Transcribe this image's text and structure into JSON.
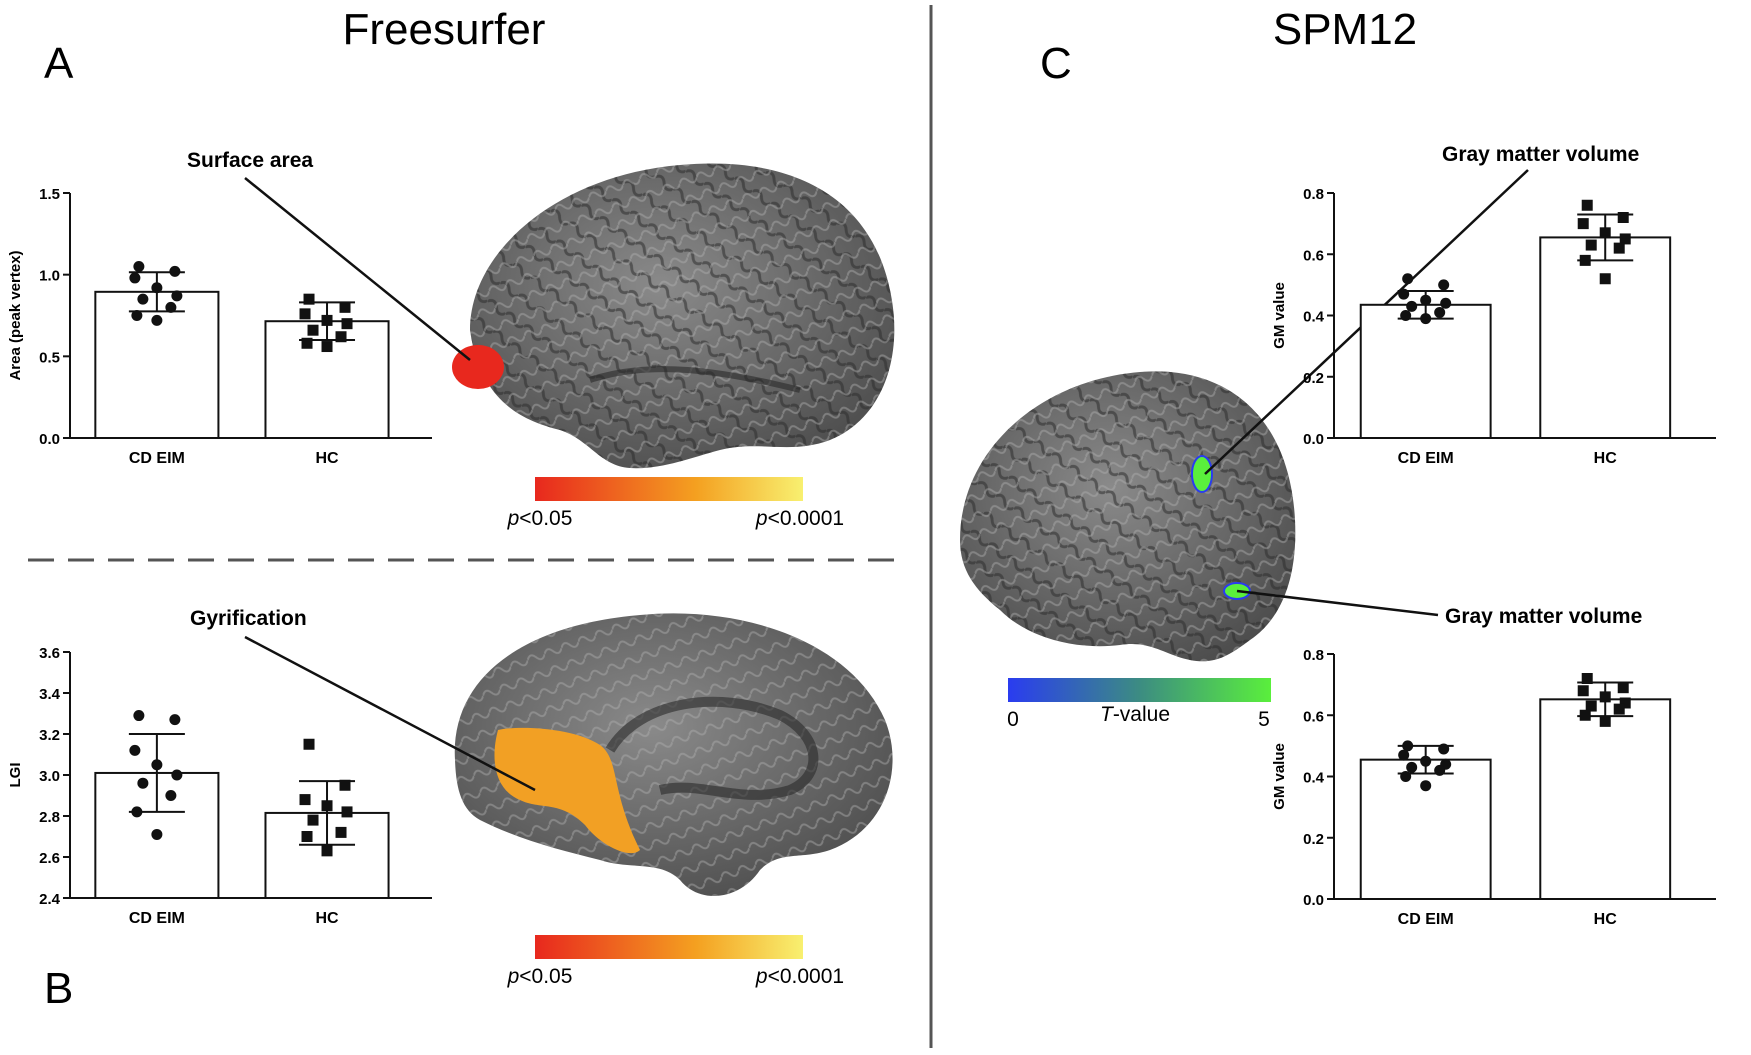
{
  "headings": {
    "left": "Freesurfer",
    "right": "SPM12"
  },
  "panel_letters": {
    "a": "A",
    "b": "B",
    "c": "C"
  },
  "annotations": {
    "surface_area": "Surface area",
    "gyrification": "Gyrification",
    "gm_volume_top": "Gray matter volume",
    "gm_volume_bottom": "Gray matter volume"
  },
  "colorbars": {
    "freesurfer_top": {
      "low": "p<0.05",
      "high": "p<0.0001",
      "colors": [
        "#e8281e",
        "#f4a020",
        "#f8f070"
      ]
    },
    "freesurfer_bottom": {
      "low": "p<0.05",
      "high": "p<0.0001",
      "colors": [
        "#e8281e",
        "#f4a020",
        "#f8f070"
      ]
    },
    "spm": {
      "low": "0",
      "mid": "T-value",
      "high": "5",
      "colors": [
        "#2a3cf0",
        "#3c8c82",
        "#5aef3c"
      ]
    }
  },
  "colors": {
    "brain_dark": "#3a3a3a",
    "brain_light": "#8c8c8c",
    "region_red": "#e8281e",
    "region_orange": "#f2a024",
    "region_green": "#5aef3c"
  },
  "chart_data": [
    {
      "type": "bar",
      "panel": "A",
      "categories": [
        "CD EIM",
        "HC"
      ],
      "values": [
        0.895,
        0.715
      ],
      "error": [
        0.12,
        0.115
      ],
      "points": [
        [
          1.05,
          1.02,
          0.98,
          0.92,
          0.87,
          0.85,
          0.8,
          0.75,
          0.72
        ],
        [
          0.85,
          0.8,
          0.76,
          0.72,
          0.7,
          0.66,
          0.62,
          0.58,
          0.56
        ]
      ],
      "marker": [
        "circle",
        "square"
      ],
      "xlabel": "",
      "ylabel": "Area (peak vertex)",
      "ylim": [
        0,
        1.5
      ],
      "yticks": [
        "0.0",
        "0.5",
        "1.0",
        "1.5"
      ],
      "grid": false
    },
    {
      "type": "bar",
      "panel": "B",
      "categories": [
        "CD EIM",
        "HC"
      ],
      "values": [
        3.01,
        2.815
      ],
      "error": [
        0.19,
        0.155
      ],
      "points": [
        [
          3.29,
          3.27,
          3.12,
          3.05,
          3.0,
          2.96,
          2.9,
          2.82,
          2.71
        ],
        [
          3.15,
          2.95,
          2.88,
          2.85,
          2.82,
          2.78,
          2.72,
          2.7,
          2.63
        ]
      ],
      "marker": [
        "circle",
        "square"
      ],
      "xlabel": "",
      "ylabel": "LGI",
      "ylim": [
        2.4,
        3.6
      ],
      "yticks": [
        "2.4",
        "2.6",
        "2.8",
        "3.0",
        "3.2",
        "3.4",
        "3.6"
      ],
      "grid": false
    },
    {
      "type": "bar",
      "panel": "C-top",
      "categories": [
        "CD EIM",
        "HC"
      ],
      "values": [
        0.435,
        0.655
      ],
      "error": [
        0.045,
        0.075
      ],
      "points": [
        [
          0.52,
          0.5,
          0.47,
          0.45,
          0.44,
          0.43,
          0.41,
          0.4,
          0.39
        ],
        [
          0.76,
          0.72,
          0.7,
          0.67,
          0.65,
          0.63,
          0.62,
          0.58,
          0.52
        ]
      ],
      "marker": [
        "circle",
        "square"
      ],
      "xlabel": "",
      "ylabel": "GM value",
      "ylim": [
        0,
        0.8
      ],
      "yticks": [
        "0.0",
        "0.2",
        "0.4",
        "0.6",
        "0.8"
      ],
      "grid": false
    },
    {
      "type": "bar",
      "panel": "C-bottom",
      "categories": [
        "CD EIM",
        "HC"
      ],
      "values": [
        0.455,
        0.652
      ],
      "error": [
        0.045,
        0.055
      ],
      "points": [
        [
          0.5,
          0.49,
          0.47,
          0.45,
          0.44,
          0.43,
          0.42,
          0.4,
          0.37
        ],
        [
          0.72,
          0.69,
          0.68,
          0.66,
          0.64,
          0.63,
          0.62,
          0.6,
          0.58
        ]
      ],
      "marker": [
        "circle",
        "square"
      ],
      "xlabel": "",
      "ylabel": "GM value",
      "ylim": [
        0,
        0.8
      ],
      "yticks": [
        "0.0",
        "0.2",
        "0.4",
        "0.6",
        "0.8"
      ],
      "grid": false
    }
  ]
}
